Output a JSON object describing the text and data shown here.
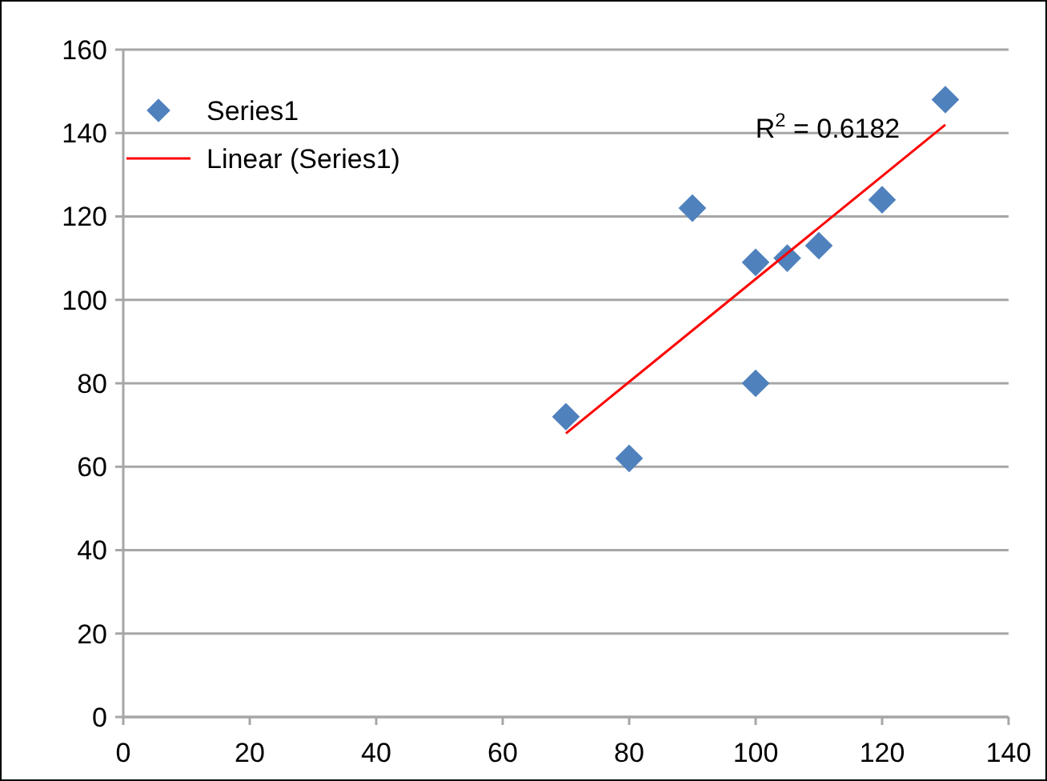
{
  "chart_data": {
    "type": "scatter",
    "x": [
      70,
      80,
      90,
      100,
      100,
      105,
      110,
      120,
      130
    ],
    "series": [
      {
        "name": "Series1",
        "color": "#4f81bd",
        "values": [
          72,
          62,
          122,
          109,
          80,
          110,
          113,
          124,
          148
        ]
      },
      {
        "name": "Linear (Series1)",
        "type": "line",
        "color": "#ff0000",
        "marker": "none",
        "x": [
          70,
          130
        ],
        "values": [
          68,
          142
        ]
      }
    ],
    "xlim": [
      0,
      140
    ],
    "xticks": [
      0,
      20,
      40,
      60,
      80,
      100,
      120,
      140
    ],
    "ylim": [
      0,
      160
    ],
    "yticks": [
      0,
      20,
      40,
      60,
      80,
      100,
      120,
      140,
      160
    ],
    "grid": "y",
    "legend": "top left",
    "marker": "diamond",
    "annotations": [
      "R$^{2}$ = 0.6182"
    ]
  }
}
